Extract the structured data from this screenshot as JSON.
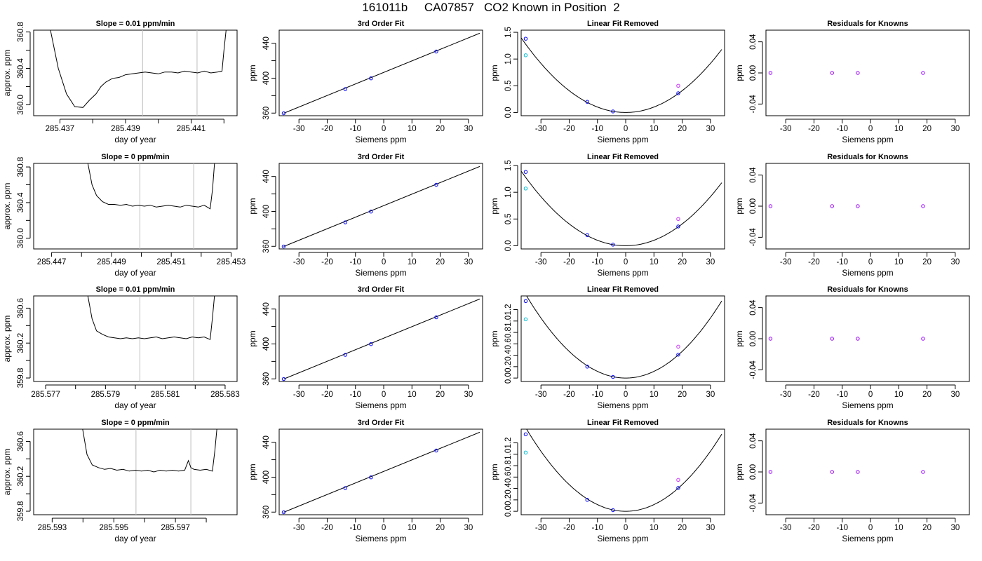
{
  "figure": {
    "title": "161011b     CA07857   CO2 Known in Position  2"
  },
  "chart_data": [
    {
      "type": "line",
      "title": "Slope =  0.01  ppm/min",
      "xlabel": "day of year",
      "ylabel": "approx. ppm",
      "xlim": [
        285.4362,
        285.4424
      ],
      "ylim": [
        359.88,
        360.82
      ],
      "xticks": [
        285.437,
        285.438,
        285.439,
        285.44,
        285.441,
        285.442
      ],
      "xtick_labels": [
        "285.437",
        "",
        "285.439",
        "",
        "285.441",
        ""
      ],
      "yticks": [
        360.0,
        360.2,
        360.4,
        360.6,
        360.8
      ],
      "ytick_labels": [
        "360.0",
        "",
        "360.4",
        "",
        "360.8"
      ],
      "vlines": [
        285.43952,
        285.44118
      ],
      "x": [
        285.4367,
        285.43695,
        285.4372,
        285.43745,
        285.4377,
        285.4379,
        285.4381,
        285.43825,
        285.4384,
        285.4386,
        285.4388,
        285.439,
        285.4392,
        285.4394,
        285.4396,
        285.4398,
        285.44,
        285.4402,
        285.4404,
        285.4406,
        285.4408,
        285.441,
        285.4412,
        285.4414,
        285.4416,
        285.4418,
        285.44194,
        285.442,
        285.44207
      ],
      "y": [
        360.84,
        360.4,
        360.12,
        359.98,
        359.97,
        360.05,
        360.12,
        360.2,
        360.25,
        360.29,
        360.3,
        360.33,
        360.34,
        360.35,
        360.36,
        360.35,
        360.34,
        360.36,
        360.36,
        360.35,
        360.37,
        360.36,
        360.35,
        360.37,
        360.35,
        360.36,
        360.37,
        360.6,
        360.84
      ]
    },
    {
      "type": "scatter",
      "title": "3rd Order Fit",
      "xlabel": "Siemens ppm",
      "ylabel": "ppm",
      "xlim": [
        -37,
        35
      ],
      "ylim": [
        357,
        455
      ],
      "xticks": [
        -30,
        -20,
        -10,
        0,
        10,
        20,
        30
      ],
      "yticks": [
        360,
        380,
        400,
        420,
        440
      ],
      "ytick_labels": [
        "360",
        "",
        "400",
        "",
        "440"
      ],
      "points": [
        {
          "x": -35.4,
          "y": 359.8,
          "color": "#0000ff"
        },
        {
          "x": -13.6,
          "y": 387.5,
          "color": "#0000ff"
        },
        {
          "x": -4.5,
          "y": 399.8,
          "color": "#0000ff"
        },
        {
          "x": 18.6,
          "y": 430.5,
          "color": "#0000ff"
        }
      ],
      "fit_line": {
        "x": [
          -35.4,
          34
        ],
        "y": [
          359.8,
          451.5
        ]
      }
    },
    {
      "type": "scatter",
      "title": "Linear Fit Removed",
      "xlabel": "Siemens ppm",
      "ylabel": "ppm",
      "xlim": [
        -37,
        35
      ],
      "ylim": [
        -0.06,
        1.54
      ],
      "xticks": [
        -30,
        -20,
        -10,
        0,
        10,
        20,
        30
      ],
      "yticks": [
        0.0,
        0.5,
        1.0,
        1.5
      ],
      "ytick_labels": [
        "0.0",
        "0.5",
        "1.0",
        "1.5"
      ],
      "curve_coeff": 0.00102,
      "points": [
        {
          "x": -35.4,
          "y": 1.38,
          "color": "#0000ff"
        },
        {
          "x": -35.4,
          "y": 1.07,
          "color": "#00bcd4"
        },
        {
          "x": -13.6,
          "y": 0.2,
          "color": "#0000ff"
        },
        {
          "x": -4.5,
          "y": 0.02,
          "color": "#0000ff"
        },
        {
          "x": 18.6,
          "y": 0.36,
          "color": "#0000ff"
        },
        {
          "x": 18.6,
          "y": 0.5,
          "color": "#cc33ff"
        }
      ]
    },
    {
      "type": "scatter",
      "title": "Residuals for Knowns",
      "xlabel": "Siemens ppm",
      "ylabel": "ppm",
      "xlim": [
        -37,
        35
      ],
      "ylim": [
        -0.055,
        0.055
      ],
      "xticks": [
        -30,
        -20,
        -10,
        0,
        10,
        20,
        30
      ],
      "yticks": [
        -0.04,
        0.0,
        0.04
      ],
      "ytick_labels": [
        "-0.04",
        "0.00",
        "0.04"
      ],
      "points": [
        {
          "x": -35.4,
          "y": 0.0,
          "color": "#9900ff"
        },
        {
          "x": -13.6,
          "y": 0.0,
          "color": "#9900ff"
        },
        {
          "x": -4.5,
          "y": 0.0,
          "color": "#9900ff"
        },
        {
          "x": 18.6,
          "y": 0.0,
          "color": "#9900ff"
        }
      ]
    },
    {
      "type": "line",
      "title": "Slope =  0  ppm/min",
      "xlabel": "day of year",
      "ylabel": "approx. ppm",
      "xlim": [
        285.4464,
        285.4532
      ],
      "ylim": [
        359.88,
        360.84
      ],
      "xticks": [
        285.447,
        285.448,
        285.449,
        285.45,
        285.451,
        285.452,
        285.453
      ],
      "xtick_labels": [
        "285.447",
        "",
        "285.449",
        "",
        "285.451",
        "",
        "285.453"
      ],
      "yticks": [
        360.0,
        360.2,
        360.4,
        360.6,
        360.8
      ],
      "ytick_labels": [
        "360.0",
        "",
        "360.4",
        "",
        "360.8"
      ],
      "vlines": [
        285.44995,
        285.45175
      ],
      "x": [
        285.4482,
        285.44835,
        285.4485,
        285.4487,
        285.4489,
        285.4491,
        285.4493,
        285.4495,
        285.4497,
        285.4499,
        285.4501,
        285.4503,
        285.4505,
        285.4507,
        285.4509,
        285.4511,
        285.4513,
        285.4515,
        285.4517,
        285.4519,
        285.4521,
        285.4523,
        285.45238,
        285.45245
      ],
      "y": [
        360.86,
        360.6,
        360.48,
        360.41,
        360.38,
        360.38,
        360.37,
        360.38,
        360.36,
        360.37,
        360.36,
        360.37,
        360.35,
        360.36,
        360.37,
        360.36,
        360.35,
        360.37,
        360.36,
        360.35,
        360.37,
        360.33,
        360.55,
        360.86
      ]
    },
    {
      "type": "scatter",
      "title": "3rd Order Fit",
      "xlabel": "Siemens ppm",
      "ylabel": "ppm",
      "xlim": [
        -37,
        35
      ],
      "ylim": [
        357,
        455
      ],
      "xticks": [
        -30,
        -20,
        -10,
        0,
        10,
        20,
        30
      ],
      "yticks": [
        360,
        380,
        400,
        420,
        440
      ],
      "ytick_labels": [
        "360",
        "",
        "400",
        "",
        "440"
      ],
      "points": [
        {
          "x": -35.4,
          "y": 359.8,
          "color": "#0000ff"
        },
        {
          "x": -13.6,
          "y": 387.5,
          "color": "#0000ff"
        },
        {
          "x": -4.5,
          "y": 399.8,
          "color": "#0000ff"
        },
        {
          "x": 18.6,
          "y": 430.5,
          "color": "#0000ff"
        }
      ],
      "fit_line": {
        "x": [
          -35.4,
          34
        ],
        "y": [
          359.8,
          451.5
        ]
      }
    },
    {
      "type": "scatter",
      "title": "Linear Fit Removed",
      "xlabel": "Siemens ppm",
      "ylabel": "ppm",
      "xlim": [
        -37,
        35
      ],
      "ylim": [
        -0.06,
        1.54
      ],
      "xticks": [
        -30,
        -20,
        -10,
        0,
        10,
        20,
        30
      ],
      "yticks": [
        0.0,
        0.5,
        1.0,
        1.5
      ],
      "ytick_labels": [
        "0.0",
        "0.5",
        "1.0",
        "1.5"
      ],
      "curve_coeff": 0.00102,
      "points": [
        {
          "x": -35.4,
          "y": 1.38,
          "color": "#0000ff"
        },
        {
          "x": -35.4,
          "y": 1.07,
          "color": "#00bcd4"
        },
        {
          "x": -13.6,
          "y": 0.2,
          "color": "#0000ff"
        },
        {
          "x": -4.5,
          "y": 0.02,
          "color": "#0000ff"
        },
        {
          "x": 18.6,
          "y": 0.36,
          "color": "#0000ff"
        },
        {
          "x": 18.6,
          "y": 0.5,
          "color": "#cc33ff"
        }
      ]
    },
    {
      "type": "scatter",
      "title": "Residuals for Knowns",
      "xlabel": "Siemens ppm",
      "ylabel": "ppm",
      "xlim": [
        -37,
        35
      ],
      "ylim": [
        -0.055,
        0.055
      ],
      "xticks": [
        -30,
        -20,
        -10,
        0,
        10,
        20,
        30
      ],
      "yticks": [
        -0.04,
        0.0,
        0.04
      ],
      "ytick_labels": [
        "-0.04",
        "0.00",
        "0.04"
      ],
      "points": [
        {
          "x": -35.4,
          "y": 0.0,
          "color": "#9900ff"
        },
        {
          "x": -13.6,
          "y": 0.0,
          "color": "#9900ff"
        },
        {
          "x": -4.5,
          "y": 0.0,
          "color": "#9900ff"
        },
        {
          "x": 18.6,
          "y": 0.0,
          "color": "#9900ff"
        }
      ]
    },
    {
      "type": "line",
      "title": "Slope =  0.01  ppm/min",
      "xlabel": "day of year",
      "ylabel": "approx. ppm",
      "xlim": [
        285.5766,
        285.5834
      ],
      "ylim": [
        359.76,
        360.74
      ],
      "xticks": [
        285.577,
        285.578,
        285.579,
        285.58,
        285.581,
        285.582,
        285.583
      ],
      "xtick_labels": [
        "285.577",
        "",
        "285.579",
        "",
        "285.581",
        "",
        "285.583"
      ],
      "yticks": [
        359.8,
        360.0,
        360.2,
        360.4,
        360.6
      ],
      "ytick_labels": [
        "359.8",
        "",
        "360.2",
        "",
        "360.6"
      ],
      "vlines": [
        285.58015,
        285.58195
      ],
      "x": [
        285.5784,
        285.57855,
        285.5787,
        285.5789,
        285.5791,
        285.5793,
        285.5795,
        285.5797,
        285.5799,
        285.5801,
        285.5803,
        285.5805,
        285.5807,
        285.5809,
        285.5811,
        285.5813,
        285.5815,
        285.5817,
        285.5819,
        285.5821,
        285.5823,
        285.5825,
        285.58258,
        285.58265
      ],
      "y": [
        360.76,
        360.48,
        360.34,
        360.3,
        360.27,
        360.26,
        360.25,
        360.26,
        360.25,
        360.26,
        360.25,
        360.26,
        360.27,
        360.25,
        360.26,
        360.27,
        360.26,
        360.25,
        360.27,
        360.26,
        360.27,
        360.24,
        360.5,
        360.76
      ]
    },
    {
      "type": "scatter",
      "title": "3rd Order Fit",
      "xlabel": "Siemens ppm",
      "ylabel": "ppm",
      "xlim": [
        -37,
        35
      ],
      "ylim": [
        357,
        455
      ],
      "xticks": [
        -30,
        -20,
        -10,
        0,
        10,
        20,
        30
      ],
      "yticks": [
        360,
        380,
        400,
        420,
        440
      ],
      "ytick_labels": [
        "360",
        "",
        "400",
        "",
        "440"
      ],
      "points": [
        {
          "x": -35.4,
          "y": 359.8,
          "color": "#0000ff"
        },
        {
          "x": -13.6,
          "y": 387.5,
          "color": "#0000ff"
        },
        {
          "x": -4.5,
          "y": 399.8,
          "color": "#0000ff"
        },
        {
          "x": 18.6,
          "y": 430.5,
          "color": "#0000ff"
        }
      ],
      "fit_line": {
        "x": [
          -35.4,
          34
        ],
        "y": [
          359.8,
          451.5
        ]
      }
    },
    {
      "type": "scatter",
      "title": "Linear Fit Removed",
      "xlabel": "Siemens ppm",
      "ylabel": "ppm",
      "xlim": [
        -37,
        35
      ],
      "ylim": [
        -0.06,
        1.44
      ],
      "xticks": [
        -30,
        -20,
        -10,
        0,
        10,
        20,
        30
      ],
      "yticks": [
        0.0,
        0.2,
        0.4,
        0.6,
        0.8,
        1.0,
        1.2
      ],
      "ytick_labels": [
        "0.0",
        "0.2",
        "0.4",
        "0.6",
        "0.8",
        "1.0",
        "1.2"
      ],
      "curve_coeff": 0.00117,
      "points": [
        {
          "x": -35.4,
          "y": 1.35,
          "color": "#0000ff"
        },
        {
          "x": -35.4,
          "y": 1.03,
          "color": "#00bcd4"
        },
        {
          "x": -13.6,
          "y": 0.2,
          "color": "#0000ff"
        },
        {
          "x": -4.5,
          "y": 0.02,
          "color": "#0000ff"
        },
        {
          "x": 18.6,
          "y": 0.41,
          "color": "#0000ff"
        },
        {
          "x": 18.6,
          "y": 0.55,
          "color": "#cc33ff"
        }
      ]
    },
    {
      "type": "scatter",
      "title": "Residuals for Knowns",
      "xlabel": "Siemens ppm",
      "ylabel": "ppm",
      "xlim": [
        -37,
        35
      ],
      "ylim": [
        -0.055,
        0.055
      ],
      "xticks": [
        -30,
        -20,
        -10,
        0,
        10,
        20,
        30
      ],
      "yticks": [
        -0.04,
        0.0,
        0.04
      ],
      "ytick_labels": [
        "-0.04",
        "0.00",
        "0.04"
      ],
      "points": [
        {
          "x": -35.4,
          "y": 0.0,
          "color": "#9900ff"
        },
        {
          "x": -13.6,
          "y": 0.0,
          "color": "#9900ff"
        },
        {
          "x": -4.5,
          "y": 0.0,
          "color": "#9900ff"
        },
        {
          "x": 18.6,
          "y": 0.0,
          "color": "#9900ff"
        }
      ]
    },
    {
      "type": "line",
      "title": "Slope =  0  ppm/min",
      "xlabel": "day of year",
      "ylabel": "approx. ppm",
      "xlim": [
        285.5924,
        285.599
      ],
      "ylim": [
        359.76,
        360.74
      ],
      "xticks": [
        285.593,
        285.594,
        285.595,
        285.596,
        285.597,
        285.598
      ],
      "xtick_labels": [
        "285.593",
        "",
        "285.595",
        "",
        "285.597",
        ""
      ],
      "yticks": [
        359.8,
        360.0,
        360.2,
        360.4,
        360.6
      ],
      "ytick_labels": [
        "359.8",
        "",
        "360.2",
        "",
        "360.6"
      ],
      "vlines": [
        285.59572,
        285.5975
      ],
      "x": [
        285.59398,
        285.59413,
        285.5943,
        285.5945,
        285.5947,
        285.5949,
        285.5951,
        285.5953,
        285.5955,
        285.5957,
        285.5959,
        285.5961,
        285.5963,
        285.5965,
        285.5967,
        285.5969,
        285.5971,
        285.5973,
        285.59742,
        285.5975,
        285.5976,
        285.5978,
        285.598,
        285.5982,
        285.59828,
        285.59835
      ],
      "y": [
        360.76,
        360.45,
        360.33,
        360.3,
        360.28,
        360.29,
        360.27,
        360.28,
        360.26,
        360.27,
        360.26,
        360.27,
        360.25,
        360.27,
        360.26,
        360.27,
        360.26,
        360.27,
        360.38,
        360.3,
        360.28,
        360.27,
        360.28,
        360.26,
        360.5,
        360.76
      ]
    },
    {
      "type": "scatter",
      "title": "3rd Order Fit",
      "xlabel": "Siemens ppm",
      "ylabel": "ppm",
      "xlim": [
        -37,
        35
      ],
      "ylim": [
        357,
        455
      ],
      "xticks": [
        -30,
        -20,
        -10,
        0,
        10,
        20,
        30
      ],
      "yticks": [
        360,
        380,
        400,
        420,
        440
      ],
      "ytick_labels": [
        "360",
        "",
        "400",
        "",
        "440"
      ],
      "points": [
        {
          "x": -35.4,
          "y": 359.8,
          "color": "#0000ff"
        },
        {
          "x": -13.6,
          "y": 387.5,
          "color": "#0000ff"
        },
        {
          "x": -4.5,
          "y": 399.8,
          "color": "#0000ff"
        },
        {
          "x": 18.6,
          "y": 430.5,
          "color": "#0000ff"
        }
      ],
      "fit_line": {
        "x": [
          -35.4,
          34
        ],
        "y": [
          359.8,
          451.5
        ]
      }
    },
    {
      "type": "scatter",
      "title": "Linear Fit Removed",
      "xlabel": "Siemens ppm",
      "ylabel": "ppm",
      "xlim": [
        -37,
        35
      ],
      "ylim": [
        -0.06,
        1.44
      ],
      "xticks": [
        -30,
        -20,
        -10,
        0,
        10,
        20,
        30
      ],
      "yticks": [
        0.0,
        0.2,
        0.4,
        0.6,
        0.8,
        1.0,
        1.2
      ],
      "ytick_labels": [
        "0.0",
        "0.2",
        "0.4",
        "0.6",
        "0.8",
        "1.0",
        "1.2"
      ],
      "curve_coeff": 0.00117,
      "points": [
        {
          "x": -35.4,
          "y": 1.35,
          "color": "#0000ff"
        },
        {
          "x": -35.4,
          "y": 1.03,
          "color": "#00bcd4"
        },
        {
          "x": -13.6,
          "y": 0.2,
          "color": "#0000ff"
        },
        {
          "x": -4.5,
          "y": 0.02,
          "color": "#0000ff"
        },
        {
          "x": 18.6,
          "y": 0.41,
          "color": "#0000ff"
        },
        {
          "x": 18.6,
          "y": 0.55,
          "color": "#cc33ff"
        }
      ]
    },
    {
      "type": "scatter",
      "title": "Residuals for Knowns",
      "xlabel": "Siemens ppm",
      "ylabel": "ppm",
      "xlim": [
        -37,
        35
      ],
      "ylim": [
        -0.055,
        0.055
      ],
      "xticks": [
        -30,
        -20,
        -10,
        0,
        10,
        20,
        30
      ],
      "yticks": [
        -0.04,
        0.0,
        0.04
      ],
      "ytick_labels": [
        "-0.04",
        "0.00",
        "0.04"
      ],
      "points": [
        {
          "x": -35.4,
          "y": 0.0,
          "color": "#9900ff"
        },
        {
          "x": -13.6,
          "y": 0.0,
          "color": "#9900ff"
        },
        {
          "x": -4.5,
          "y": 0.0,
          "color": "#9900ff"
        },
        {
          "x": 18.6,
          "y": 0.0,
          "color": "#9900ff"
        }
      ]
    }
  ]
}
